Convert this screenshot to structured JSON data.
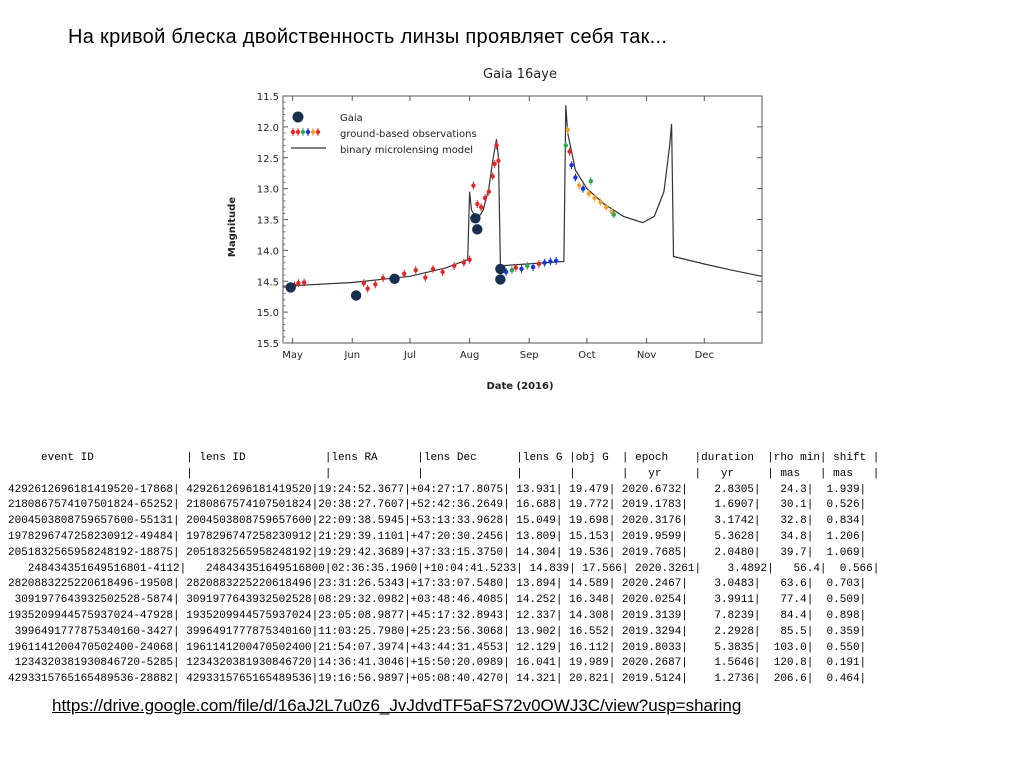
{
  "slide": {
    "heading": "На кривой блеска двойственность линзы проявляет себя так...",
    "link": "https://drive.google.com/file/d/16aJ2L7u0z6_JvJdvdTF5aFS72v0OWJ3C/view?usp=sharing"
  },
  "chart_data": {
    "type": "scatter",
    "title": "Gaia 16aye",
    "xlabel": "Date (2016)",
    "ylabel": "Magnitude",
    "x_unit": "month",
    "xlim": [
      "2016-04-26",
      "2016-12-31"
    ],
    "ylim": [
      15.5,
      11.5
    ],
    "y_inverted": true,
    "grid": false,
    "legend": "top-left",
    "x_ticks": [
      "May",
      "Jun",
      "Jul",
      "Aug",
      "Sep",
      "Oct",
      "Nov",
      "Dec"
    ],
    "y_ticks": [
      "11.5",
      "12.0",
      "12.5",
      "13.0",
      "13.5",
      "14.0",
      "14.5",
      "15.0",
      "15.5"
    ],
    "legend_entries": [
      "Gaia",
      "ground-based observations",
      "binary microlensing model"
    ],
    "colors": {
      "gaia": "#17304f",
      "model": "#333333",
      "ground": [
        "#e0282c",
        "#1a33d6",
        "#f2a12a",
        "#2fa84f"
      ]
    },
    "series": [
      {
        "name": "Gaia",
        "points": [
          [
            "2016-04-30",
            14.6
          ],
          [
            "2016-06-03",
            14.73
          ],
          [
            "2016-06-23",
            14.46
          ],
          [
            "2016-08-04",
            13.48
          ],
          [
            "2016-08-05",
            13.66
          ],
          [
            "2016-08-17",
            14.3
          ],
          [
            "2016-08-17",
            14.47
          ]
        ]
      },
      {
        "name": "ground-based observations",
        "points": [
          [
            "2016-05-02",
            14.57,
            "red"
          ],
          [
            "2016-05-04",
            14.53,
            "red"
          ],
          [
            "2016-05-07",
            14.52,
            "red"
          ],
          [
            "2016-06-07",
            14.53,
            "red"
          ],
          [
            "2016-06-09",
            14.62,
            "red"
          ],
          [
            "2016-06-13",
            14.55,
            "red"
          ],
          [
            "2016-06-17",
            14.45,
            "red"
          ],
          [
            "2016-06-28",
            14.38,
            "red"
          ],
          [
            "2016-07-04",
            14.32,
            "red"
          ],
          [
            "2016-07-09",
            14.44,
            "red"
          ],
          [
            "2016-07-13",
            14.3,
            "red"
          ],
          [
            "2016-07-18",
            14.35,
            "red"
          ],
          [
            "2016-07-24",
            14.25,
            "red"
          ],
          [
            "2016-07-29",
            14.2,
            "red"
          ],
          [
            "2016-08-01",
            14.15,
            "red"
          ],
          [
            "2016-08-03",
            12.95,
            "red"
          ],
          [
            "2016-08-05",
            13.25,
            "red"
          ],
          [
            "2016-08-07",
            13.3,
            "red"
          ],
          [
            "2016-08-09",
            13.15,
            "red"
          ],
          [
            "2016-08-11",
            13.05,
            "red"
          ],
          [
            "2016-08-13",
            12.8,
            "red"
          ],
          [
            "2016-08-14",
            12.6,
            "red"
          ],
          [
            "2016-08-15",
            12.3,
            "red"
          ],
          [
            "2016-08-16",
            12.55,
            "red"
          ],
          [
            "2016-08-18",
            14.3,
            "blue"
          ],
          [
            "2016-08-20",
            14.35,
            "blue"
          ],
          [
            "2016-08-23",
            14.32,
            "green"
          ],
          [
            "2016-08-25",
            14.28,
            "red"
          ],
          [
            "2016-08-28",
            14.3,
            "blue"
          ],
          [
            "2016-08-31",
            14.25,
            "green"
          ],
          [
            "2016-09-03",
            14.27,
            "blue"
          ],
          [
            "2016-09-06",
            14.22,
            "red"
          ],
          [
            "2016-09-09",
            14.2,
            "blue"
          ],
          [
            "2016-09-12",
            14.18,
            "blue"
          ],
          [
            "2016-09-15",
            14.17,
            "blue"
          ],
          [
            "2016-09-20",
            12.3,
            "green"
          ],
          [
            "2016-09-21",
            12.05,
            "orange"
          ],
          [
            "2016-09-22",
            12.4,
            "red"
          ],
          [
            "2016-09-23",
            12.62,
            "blue"
          ],
          [
            "2016-09-25",
            12.82,
            "blue"
          ],
          [
            "2016-09-27",
            12.95,
            "orange"
          ],
          [
            "2016-09-29",
            13.0,
            "blue"
          ],
          [
            "2016-10-02",
            13.08,
            "orange"
          ],
          [
            "2016-10-03",
            12.88,
            "green"
          ],
          [
            "2016-10-05",
            13.15,
            "orange"
          ],
          [
            "2016-10-08",
            13.22,
            "orange"
          ],
          [
            "2016-10-11",
            13.3,
            "orange"
          ],
          [
            "2016-10-14",
            13.38,
            "orange"
          ],
          [
            "2016-10-15",
            13.42,
            "green"
          ]
        ]
      },
      {
        "name": "binary microlensing model",
        "points": [
          [
            "2016-04-26",
            14.58
          ],
          [
            "2016-06-01",
            14.52
          ],
          [
            "2016-07-01",
            14.42
          ],
          [
            "2016-07-20",
            14.28
          ],
          [
            "2016-07-31",
            14.15
          ],
          [
            "2016-08-01",
            13.05
          ],
          [
            "2016-08-02",
            13.35
          ],
          [
            "2016-08-05",
            13.5
          ],
          [
            "2016-08-08",
            13.35
          ],
          [
            "2016-08-11",
            13.0
          ],
          [
            "2016-08-13",
            12.55
          ],
          [
            "2016-08-15",
            12.2
          ],
          [
            "2016-08-16",
            12.5
          ],
          [
            "2016-08-17",
            14.25
          ],
          [
            "2016-09-19",
            14.18
          ],
          [
            "2016-09-20",
            11.65
          ],
          [
            "2016-09-21",
            12.1
          ],
          [
            "2016-09-25",
            12.7
          ],
          [
            "2016-10-01",
            13.0
          ],
          [
            "2016-10-10",
            13.25
          ],
          [
            "2016-10-20",
            13.45
          ],
          [
            "2016-10-30",
            13.55
          ],
          [
            "2016-11-05",
            13.45
          ],
          [
            "2016-11-10",
            13.05
          ],
          [
            "2016-11-13",
            12.3
          ],
          [
            "2016-11-14",
            11.95
          ],
          [
            "2016-11-15",
            14.1
          ],
          [
            "2016-12-01",
            14.22
          ],
          [
            "2016-12-15",
            14.32
          ],
          [
            "2016-12-31",
            14.42
          ]
        ]
      }
    ]
  },
  "table": {
    "header_line_1": "     event ID              | lens ID            |lens RA      |lens Dec      |lens G |obj G  | epoch    |duration  |rho min| shift |",
    "header_line_2": "                           |                    |             |              |       |       |   yr     |   yr     | mas   | mas   |",
    "rows": [
      "4292612696181419520-17868| 4292612696181419520|19:24:52.3677|+04:27:17.8075| 13.931| 19.479| 2020.6732|    2.8305|   24.3|  1.939|",
      "2180867574107501824-65252| 2180867574107501824|20:38:27.7607|+52:42:36.2649| 16.688| 19.772| 2019.1783|    1.6907|   30.1|  0.526|",
      "2004503808759657600-55131| 2004503808759657600|22:09:38.5945|+53:13:33.9628| 15.049| 19.698| 2020.3176|    3.1742|   32.8|  0.834|",
      "1978296747258230912-49484| 1978296747258230912|21:29:39.1101|+47:20:30.2456| 13.809| 15.153| 2019.9599|    5.3628|   34.8|  1.206|",
      "2051832565958248192-18875| 2051832565958248192|19:29:42.3689|+37:33:15.3750| 14.304| 19.536| 2019.7685|    2.0480|   39.7|  1.069|",
      "   248434351649516801-4112|   248434351649516800|02:36:35.1960|+10:04:41.5233| 14.839| 17.566| 2020.3261|    3.4892|   56.4|  0.566|",
      "2820883225220618496-19508| 2820883225220618496|23:31:26.5343|+17:33:07.5480| 13.894| 14.589| 2020.2467|    3.0483|   63.6|  0.703|",
      " 3091977643932502528-5874| 3091977643932502528|08:29:32.0982|+03:48:46.4085| 14.252| 16.348| 2020.0254|    3.9911|   77.4|  0.509|",
      "1935209944575937024-47928| 1935209944575937024|23:05:08.9877|+45:17:32.8943| 12.337| 14.308| 2019.3139|    7.8239|   84.4|  0.898|",
      " 3996491777875340160-3427| 3996491777875340160|11:03:25.7980|+25:23:56.3068| 13.902| 16.552| 2019.3294|    2.2928|   85.5|  0.359|",
      "1961141200470502400-24068| 1961141200470502400|21:54:07.3974|+43:44:31.4553| 12.129| 16.112| 2019.8033|    5.3835|  103.0|  0.550|",
      " 1234320381930846720-5285| 1234320381930846720|14:36:41.3046|+15:50:20.0989| 16.041| 19.989| 2020.2687|    1.5646|  120.8|  0.191|",
      "4293315765165489536-28882| 4293315765165489536|19:16:56.9897|+05:08:40.4270| 14.321| 20.821| 2019.5124|    1.2736|  206.6|  0.464|"
    ]
  }
}
